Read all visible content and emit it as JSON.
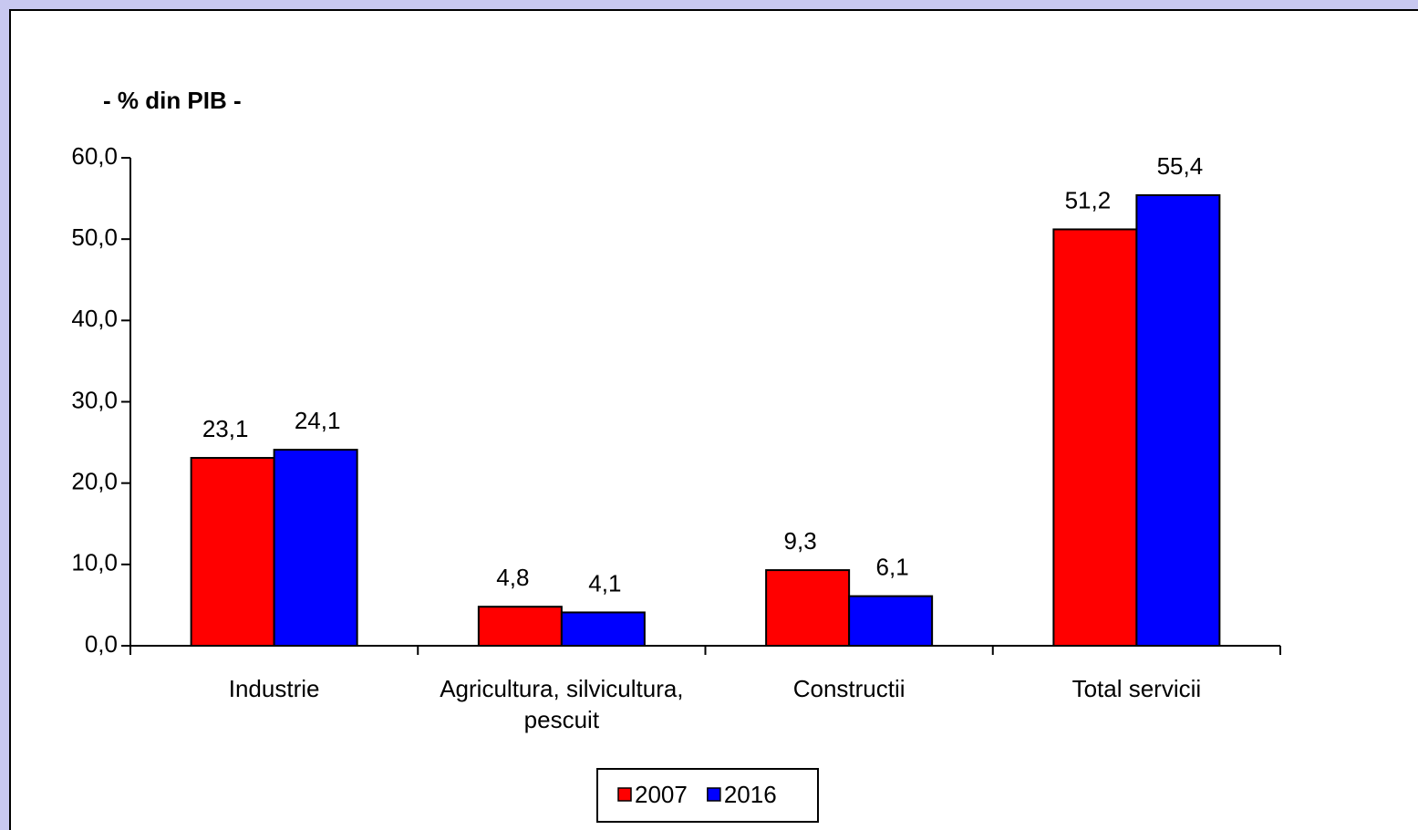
{
  "chart_data": {
    "type": "bar",
    "title": "- % din PIB -",
    "categories": [
      "Industrie",
      "Agricultura, silvicultura, pescuit",
      "Constructii",
      "Total servicii"
    ],
    "series": [
      {
        "name": "2007",
        "color": "#ff0000",
        "values": [
          23.1,
          4.8,
          9.3,
          51.2
        ],
        "value_labels": [
          "23,1",
          "4,8",
          "9,3",
          "51,2"
        ]
      },
      {
        "name": "2016",
        "color": "#0000ff",
        "values": [
          24.1,
          4.1,
          6.1,
          55.4
        ],
        "value_labels": [
          "24,1",
          "4,1",
          "6,1",
          "55,4"
        ]
      }
    ],
    "ylim": [
      0,
      60
    ],
    "yticks": [
      {
        "value": 0,
        "label": "0,0"
      },
      {
        "value": 10,
        "label": "10,0"
      },
      {
        "value": 20,
        "label": "20,0"
      },
      {
        "value": 30,
        "label": "30,0"
      },
      {
        "value": 40,
        "label": "40,0"
      },
      {
        "value": 50,
        "label": "50,0"
      },
      {
        "value": 60,
        "label": "60,0"
      }
    ],
    "grid": false,
    "legend": "bottom"
  }
}
